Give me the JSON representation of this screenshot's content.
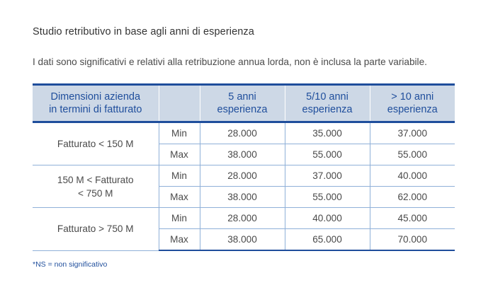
{
  "title": "Studio retributivo in base agli anni di esperienza",
  "subtitle": "I dati sono significativi e relativi alla retribuzione annua lorda, non è inclusa la parte variabile.",
  "table": {
    "headers": {
      "company_line1": "Dimensioni azienda",
      "company_line2": "in termini di fatturato",
      "metric": "",
      "col1_line1": "5 anni",
      "col1_line2": "esperienza",
      "col2_line1": "5/10 anni",
      "col2_line2": "esperienza",
      "col3_line1": "> 10 anni",
      "col3_line2": "esperienza"
    },
    "groups": [
      {
        "label_line1": "Fatturato < 150 M",
        "label_line2": "",
        "min": {
          "label": "Min",
          "values": [
            "28.000",
            "35.000",
            "37.000"
          ]
        },
        "max": {
          "label": "Max",
          "values": [
            "38.000",
            "55.000",
            "55.000"
          ]
        }
      },
      {
        "label_line1": "150 M < Fatturato",
        "label_line2": "< 750 M",
        "min": {
          "label": "Min",
          "values": [
            "28.000",
            "37.000",
            "40.000"
          ]
        },
        "max": {
          "label": "Max",
          "values": [
            "38.000",
            "55.000",
            "62.000"
          ]
        }
      },
      {
        "label_line1": "Fatturato > 750 M",
        "label_line2": "",
        "min": {
          "label": "Min",
          "values": [
            "28.000",
            "40.000",
            "45.000"
          ]
        },
        "max": {
          "label": "Max",
          "values": [
            "38.000",
            "65.000",
            "70.000"
          ]
        }
      }
    ]
  },
  "footnote": "*NS = non significativo",
  "colors": {
    "header_bg": "#cdd8e6",
    "header_text": "#1f4e9c",
    "rule": "#1f4e9c",
    "grid": "#8fb0d8"
  }
}
